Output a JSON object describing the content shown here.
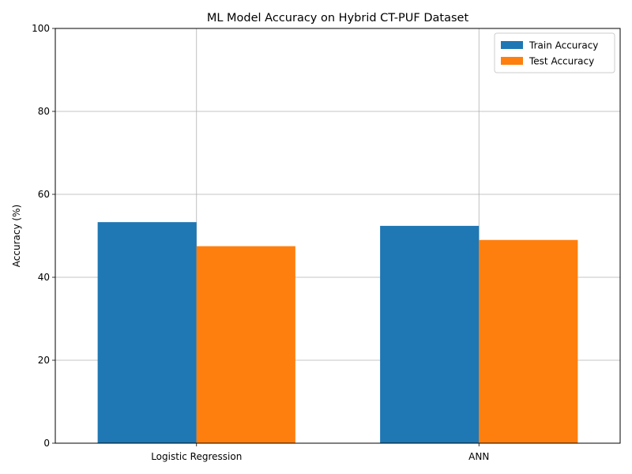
{
  "chart_data": {
    "type": "bar",
    "title": "ML Model Accuracy on Hybrid CT-PUF Dataset",
    "xlabel": "",
    "ylabel": "Accuracy (%)",
    "categories": [
      "Logistic Regression",
      "ANN"
    ],
    "series": [
      {
        "name": "Train Accuracy",
        "values": [
          53.3,
          52.4
        ],
        "color": "#1f77b4"
      },
      {
        "name": "Test Accuracy",
        "values": [
          47.5,
          49.0
        ],
        "color": "#ff7f0e"
      }
    ],
    "ylim": [
      0,
      100
    ],
    "yticks": [
      0,
      20,
      40,
      60,
      80,
      100
    ],
    "grid": true,
    "legend_position": "top-right"
  }
}
